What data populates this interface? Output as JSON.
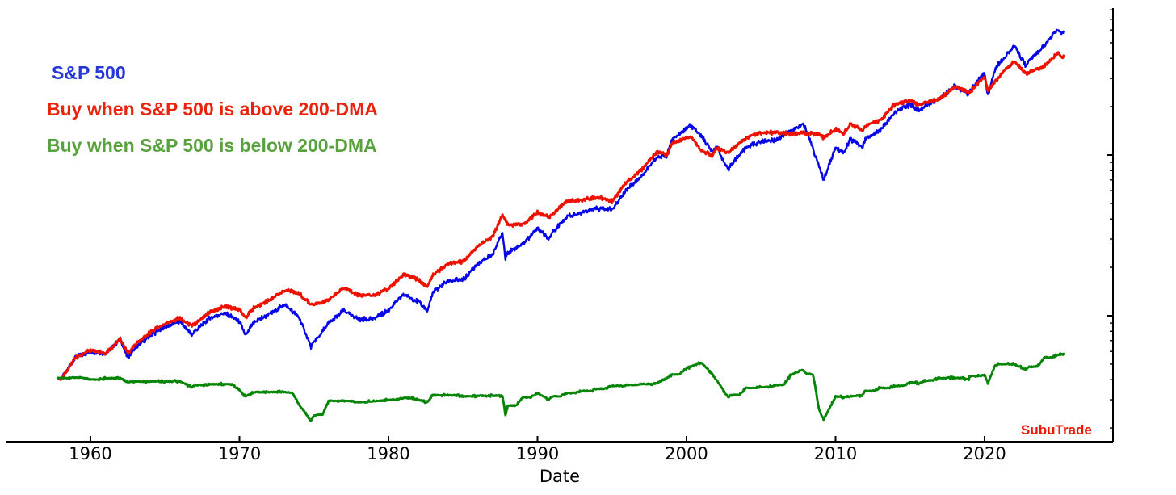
{
  "figure": {
    "background": "#ffffff"
  },
  "legend": {
    "items": [
      {
        "label": "S&P 500",
        "color": "#2438d8"
      },
      {
        "label": "Buy when S&P 500 is above 200-DMA",
        "color": "#e8250c"
      },
      {
        "label": "Buy when S&P 500 is below 200-DMA",
        "color": "#58a23e"
      }
    ]
  },
  "watermark": {
    "text": "SubuTrade",
    "color": "#ee1605"
  },
  "chart_data": {
    "type": "line",
    "title": "",
    "xlabel": "Date",
    "ylabel": "",
    "x_ticks": [
      1960,
      1970,
      1980,
      1990,
      2000,
      2010,
      2020
    ],
    "x_range": [
      1954.4,
      2028.5
    ],
    "y_scale": "log",
    "y_axis_side": "right",
    "y_range": [
      16,
      8200
    ],
    "y_ticks": {
      "major": [
        100,
        1000
      ],
      "minor": [
        20,
        30,
        40,
        50,
        60,
        70,
        80,
        90,
        200,
        300,
        400,
        500,
        600,
        700,
        800,
        900,
        2000,
        3000,
        4000,
        5000,
        6000,
        7000,
        8000
      ]
    },
    "grid": false,
    "legend_position": "upper left",
    "years": [
      1957.8,
      1958,
      1959,
      1960,
      1961,
      1962,
      1962.5,
      1963,
      1964,
      1965,
      1966,
      1966.8,
      1967,
      1968,
      1969,
      1970,
      1970.4,
      1971,
      1972,
      1973,
      1974,
      1974.8,
      1975,
      1976,
      1977,
      1978,
      1979,
      1980,
      1981,
      1982,
      1982.6,
      1983,
      1984,
      1985,
      1986,
      1987,
      1987.65,
      1987.85,
      1988,
      1989,
      1990,
      1990.75,
      1991,
      1992,
      1993,
      1994,
      1995,
      1996,
      1997,
      1998,
      1998.7,
      1999,
      2000,
      2000.25,
      2001,
      2001.75,
      2002,
      2002.8,
      2003,
      2004,
      2005,
      2006,
      2007,
      2007.8,
      2008,
      2008.9,
      2009.2,
      2010,
      2010.55,
      2011,
      2011.8,
      2012,
      2013,
      2014,
      2015,
      2015.65,
      2016,
      2017,
      2018,
      2018.95,
      2019,
      2020,
      2020.22,
      2020.7,
      2021,
      2022,
      2022.77,
      2023,
      2024,
      2024.9,
      2025.15,
      2025.3
    ],
    "series": [
      {
        "name": "S&P 500",
        "color": "#0505e8",
        "values": [
          41,
          40,
          55,
          60,
          58,
          71.5,
          55,
          63,
          75,
          85,
          92,
          76,
          80,
          96.5,
          104,
          92,
          75,
          92,
          102,
          118,
          97.5,
          64,
          68.5,
          90,
          107.5,
          95,
          96,
          108,
          136,
          122.5,
          107,
          140.5,
          165,
          167,
          211,
          242,
          332,
          230,
          247,
          278,
          353,
          300,
          330,
          417,
          436,
          466,
          459,
          616,
          741,
          970,
          1000,
          1229,
          1469,
          1527,
          1320,
          1040,
          1148,
          800,
          880,
          1112,
          1212,
          1248,
          1418,
          1550,
          1468,
          850,
          700,
          1115,
          1030,
          1258,
          1120,
          1258,
          1426,
          1848,
          2059,
          1890,
          2044,
          2239,
          2674,
          2390,
          2507,
          3231,
          2350,
          3400,
          3756,
          4766,
          3600,
          3840,
          4770,
          6060,
          5720,
          5880
        ]
      },
      {
        "name": "Buy when S&P 500 is above 200-DMA",
        "color": "#ee1100",
        "values": [
          41,
          40,
          54.7,
          61.2,
          58.3,
          71.5,
          58.6,
          66.2,
          78.8,
          89.4,
          96.7,
          86.6,
          88.6,
          105.5,
          113.7,
          109.3,
          97.6,
          112.6,
          124.8,
          144.4,
          138,
          117.7,
          117,
          125.1,
          149.4,
          134.3,
          133.4,
          147.6,
          181,
          167.4,
          151.3,
          180,
          211.4,
          217.4,
          272,
          312,
          428,
          393,
          368,
          368,
          439,
          410,
          429,
          518,
          526,
          546,
          516,
          683,
          810,
          1047,
          1000,
          1172,
          1281,
          1304,
          1061,
          992,
          1100,
          1030,
          1080,
          1284,
          1380,
          1383,
          1352,
          1381,
          1368,
          1340,
          1276,
          1451,
          1362,
          1560,
          1435,
          1517,
          1647,
          2076,
          2193,
          2039,
          2122,
          2239,
          2674,
          2450,
          2447,
          3081,
          2535,
          2845,
          3080,
          3850,
          3209,
          3280,
          3556,
          4300,
          4043,
          4156
        ]
      },
      {
        "name": "Buy when S&P 500 is below 200-DMA",
        "color": "#058505",
        "values": [
          41,
          41,
          41.2,
          40.2,
          40.8,
          41,
          38.5,
          39,
          39,
          39,
          39,
          36,
          37,
          37.5,
          37.5,
          34.5,
          31.5,
          33.5,
          33.5,
          33.5,
          28,
          22.3,
          24,
          29.5,
          29.5,
          29,
          29.5,
          30,
          30.8,
          30,
          29,
          32,
          32,
          31.5,
          31.8,
          31.8,
          31.8,
          24,
          27.5,
          31,
          33,
          30,
          31.5,
          33,
          34,
          35,
          36.5,
          37,
          37.5,
          38,
          41,
          43,
          47,
          48,
          51,
          43,
          40,
          31,
          32,
          35.5,
          36,
          37,
          43,
          46,
          44,
          26,
          22.5,
          31.5,
          31,
          31.5,
          32,
          34,
          35.5,
          36.5,
          38.5,
          38,
          39.5,
          41,
          41,
          40,
          42,
          43,
          38,
          49,
          50,
          50,
          46,
          48,
          55,
          57,
          58,
          58
        ]
      }
    ]
  }
}
